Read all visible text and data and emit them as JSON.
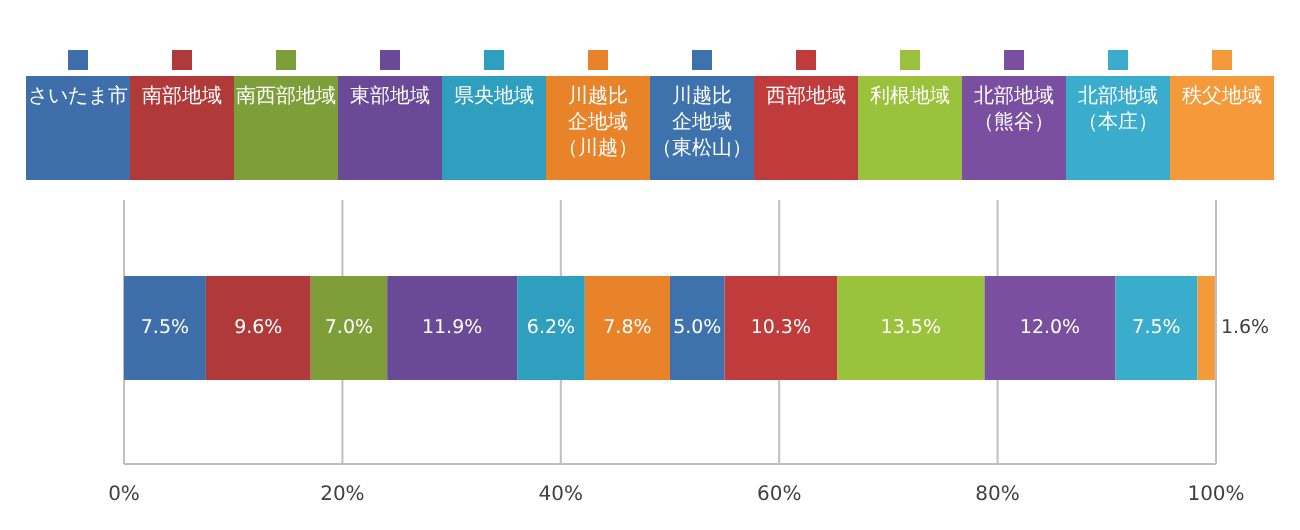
{
  "chart_data": {
    "type": "bar",
    "orientation": "horizontal",
    "stacked": true,
    "categories": [
      null
    ],
    "series": [
      {
        "name": "さいたま市",
        "color": "#3f6faa",
        "values": [
          7.5
        ],
        "value_labels": [
          "7.5%"
        ]
      },
      {
        "name": "南部地域",
        "color": "#b03a3a",
        "values": [
          9.6
        ],
        "value_labels": [
          "9.6%"
        ]
      },
      {
        "name": "南西部地域",
        "color": "#7e9e3a",
        "values": [
          7.0
        ],
        "value_labels": [
          "7.0%"
        ]
      },
      {
        "name": "東部地域",
        "color": "#6a4a96",
        "values": [
          11.9
        ],
        "value_labels": [
          "11.9%"
        ]
      },
      {
        "name": "県央地域",
        "color": "#2f9fbf",
        "values": [
          6.2
        ],
        "value_labels": [
          "6.2%"
        ]
      },
      {
        "name": "川越比企地域（川越）",
        "color": "#e8832a",
        "values": [
          7.8
        ],
        "value_labels": [
          "7.8%"
        ]
      },
      {
        "name": "川越比企地域（東松山）",
        "color": "#3d72ad",
        "values": [
          5.0
        ],
        "value_labels": [
          "5.0%"
        ]
      },
      {
        "name": "西部地域",
        "color": "#c03b3b",
        "values": [
          10.3
        ],
        "value_labels": [
          "10.3%"
        ]
      },
      {
        "name": "利根地域",
        "color": "#9bc23c",
        "values": [
          13.5
        ],
        "value_labels": [
          "13.5%"
        ]
      },
      {
        "name": "北部地域（熊谷）",
        "color": "#7b4fa0",
        "values": [
          12.0
        ],
        "value_labels": [
          "12.0%"
        ]
      },
      {
        "name": "北部地域（本庄）",
        "color": "#3aaccc",
        "values": [
          7.5
        ],
        "value_labels": [
          "7.5%"
        ]
      },
      {
        "name": "秩父地域",
        "color": "#f59a3a",
        "values": [
          1.6
        ],
        "value_labels": [
          "1.6%"
        ]
      }
    ],
    "xlim": [
      0,
      100
    ],
    "xticks": [
      {
        "value": 0,
        "label": "0%"
      },
      {
        "value": 20,
        "label": "20%"
      },
      {
        "value": 40,
        "label": "40%"
      },
      {
        "value": 60,
        "label": "60%"
      },
      {
        "value": 80,
        "label": "80%"
      },
      {
        "value": 100,
        "label": "100%"
      }
    ],
    "grid": "x",
    "legend": "top"
  }
}
